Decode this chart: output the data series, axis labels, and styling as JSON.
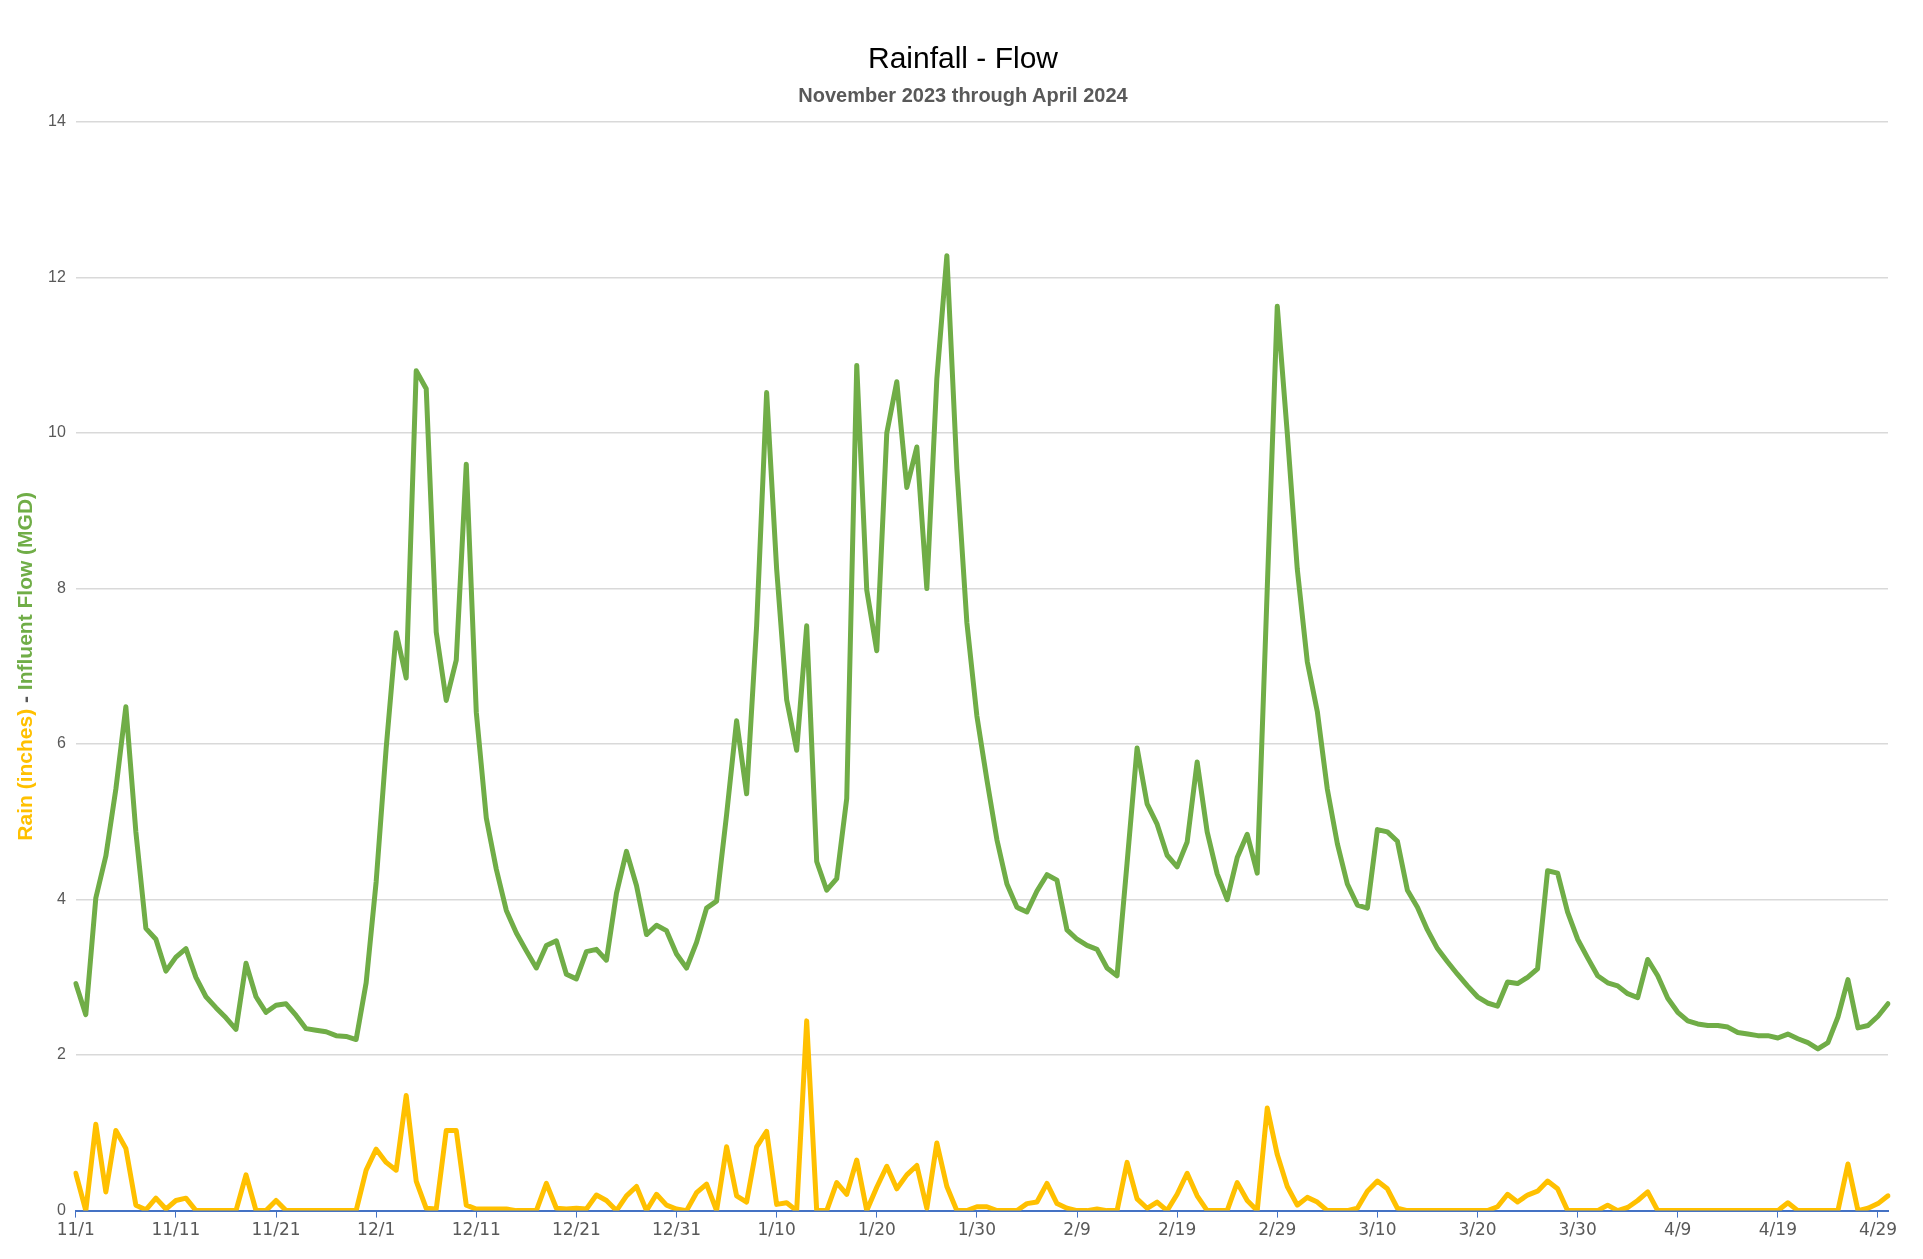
{
  "chart_data": {
    "type": "line",
    "title": "Rainfall - Flow",
    "subtitle": "November 2023 through April 2024",
    "ylabel": "Rain (inches) - Influent Flow (MGD)",
    "categories": [
      "11/1",
      null,
      null,
      null,
      null,
      null,
      null,
      null,
      null,
      null,
      "11/11",
      null,
      null,
      null,
      null,
      null,
      null,
      null,
      null,
      null,
      "11/21",
      null,
      null,
      null,
      null,
      null,
      null,
      null,
      null,
      null,
      "12/1",
      null,
      null,
      null,
      null,
      null,
      null,
      null,
      null,
      null,
      "12/11",
      null,
      null,
      null,
      null,
      null,
      null,
      null,
      null,
      null,
      "12/21",
      null,
      null,
      null,
      null,
      null,
      null,
      null,
      null,
      null,
      "12/31",
      null,
      null,
      null,
      null,
      null,
      null,
      null,
      null,
      null,
      "1/10",
      null,
      null,
      null,
      null,
      null,
      null,
      null,
      null,
      null,
      "1/20",
      null,
      null,
      null,
      null,
      null,
      null,
      null,
      null,
      null,
      "1/30",
      null,
      null,
      null,
      null,
      null,
      null,
      null,
      null,
      null,
      "2/9",
      null,
      null,
      null,
      null,
      null,
      null,
      null,
      null,
      null,
      "2/19",
      null,
      null,
      null,
      null,
      null,
      null,
      null,
      null,
      null,
      "2/29",
      null,
      null,
      null,
      null,
      null,
      null,
      null,
      null,
      null,
      "3/10",
      null,
      null,
      null,
      null,
      null,
      null,
      null,
      null,
      null,
      "3/20",
      null,
      null,
      null,
      null,
      null,
      null,
      null,
      null,
      null,
      "3/30",
      null,
      null,
      null,
      null,
      null,
      null,
      null,
      null,
      null,
      "4/9",
      null,
      null,
      null,
      null,
      null,
      null,
      null,
      null,
      null,
      "4/19",
      null,
      null,
      null,
      null,
      null,
      null,
      null,
      null,
      null,
      "4/29",
      null
    ],
    "series": [
      {
        "color": "#70ad47",
        "values": [
          2.92,
          2.52,
          4.02,
          4.56,
          5.42,
          6.48,
          4.87,
          3.63,
          3.49,
          3.08,
          3.26,
          3.37,
          3.0,
          2.75,
          2.61,
          2.48,
          2.33,
          3.18,
          2.75,
          2.55,
          2.64,
          2.66,
          2.51,
          2.34,
          2.32,
          2.3,
          2.25,
          2.24,
          2.2,
          2.93,
          4.23,
          5.95,
          7.43,
          6.85,
          10.8,
          10.57,
          7.44,
          6.56,
          7.08,
          9.6,
          6.41,
          5.05,
          4.39,
          3.86,
          3.57,
          3.34,
          3.12,
          3.41,
          3.47,
          3.04,
          2.98,
          3.33,
          3.36,
          3.22,
          4.08,
          4.62,
          4.18,
          3.55,
          3.67,
          3.6,
          3.3,
          3.12,
          3.45,
          3.89,
          3.98,
          5.09,
          6.3,
          5.36,
          7.52,
          10.52,
          8.25,
          6.57,
          5.92,
          7.52,
          4.49,
          4.12,
          4.27,
          5.3,
          10.87,
          7.98,
          7.2,
          10.0,
          10.66,
          9.3,
          9.82,
          8.0,
          10.7,
          12.28,
          9.54,
          7.56,
          6.36,
          5.54,
          4.77,
          4.2,
          3.9,
          3.84,
          4.11,
          4.32,
          4.25,
          3.61,
          3.49,
          3.41,
          3.36,
          3.12,
          3.02,
          4.47,
          5.95,
          5.23,
          4.97,
          4.57,
          4.42,
          4.74,
          5.77,
          4.87,
          4.33,
          4.0,
          4.54,
          4.84,
          4.34,
          8.0,
          11.63,
          10.0,
          8.25,
          7.06,
          6.42,
          5.42,
          4.72,
          4.2,
          3.93,
          3.89,
          4.9,
          4.87,
          4.75,
          4.12,
          3.9,
          3.61,
          3.37,
          3.2,
          3.04,
          2.89,
          2.75,
          2.67,
          2.63,
          2.94,
          2.92,
          3.0,
          3.11,
          4.37,
          4.34,
          3.84,
          3.49,
          3.25,
          3.02,
          2.93,
          2.89,
          2.79,
          2.74,
          3.23,
          3.02,
          2.73,
          2.55,
          2.44,
          2.4,
          2.38,
          2.38,
          2.36,
          2.29,
          2.27,
          2.25,
          2.25,
          2.22,
          2.27,
          2.21,
          2.16,
          2.08,
          2.16,
          2.49,
          2.97,
          2.35,
          2.38,
          2.5,
          2.66
        ]
      },
      {
        "color": "#ffc000",
        "values": [
          0.48,
          0,
          1.11,
          0.24,
          1.03,
          0.8,
          0.07,
          0.01,
          0.16,
          0.02,
          0.13,
          0.16,
          0,
          0,
          0,
          0,
          0,
          0.46,
          0,
          0,
          0.13,
          0,
          0,
          0,
          0,
          0,
          0,
          0,
          0,
          0.52,
          0.79,
          0.62,
          0.52,
          1.48,
          0.38,
          0.03,
          0.02,
          1.03,
          1.03,
          0.07,
          0.02,
          0.02,
          0.02,
          0.02,
          0,
          0,
          0,
          0.35,
          0.03,
          0.02,
          0.03,
          0.02,
          0.2,
          0.13,
          0,
          0.19,
          0.31,
          0,
          0.21,
          0.07,
          0.02,
          0,
          0.23,
          0.34,
          0,
          0.82,
          0.19,
          0.11,
          0.82,
          1.02,
          0.08,
          0.1,
          0,
          2.44,
          0,
          0,
          0.36,
          0.21,
          0.65,
          0,
          0.3,
          0.57,
          0.28,
          0.46,
          0.58,
          0.03,
          0.87,
          0.31,
          0,
          0,
          0.05,
          0.05,
          0,
          0,
          0,
          0.09,
          0.11,
          0.35,
          0.09,
          0.03,
          0,
          0,
          0.02,
          0,
          0,
          0.62,
          0.15,
          0.03,
          0.11,
          0,
          0.21,
          0.48,
          0.19,
          0,
          0,
          0,
          0.36,
          0.13,
          0,
          1.32,
          0.72,
          0.31,
          0.07,
          0.17,
          0.11,
          0,
          0,
          0,
          0.03,
          0.25,
          0.38,
          0.28,
          0.03,
          0,
          0,
          0,
          0,
          0,
          0,
          0,
          0,
          0,
          0.05,
          0.21,
          0.11,
          0.2,
          0.25,
          0.38,
          0.28,
          0,
          0,
          0,
          0,
          0.07,
          0,
          0.04,
          0.13,
          0.24,
          0,
          0,
          0,
          0,
          0,
          0,
          0,
          0,
          0,
          0,
          0,
          0,
          0,
          0.1,
          0,
          0,
          0,
          0,
          0,
          0.6,
          0,
          0.03,
          0.09,
          0.19
        ]
      }
    ],
    "ylim": [
      0,
      14
    ],
    "yticks": [
      0,
      2,
      4,
      6,
      8,
      10,
      12,
      14
    ],
    "grid": "y",
    "marker": "none",
    "line_style": "solid"
  }
}
